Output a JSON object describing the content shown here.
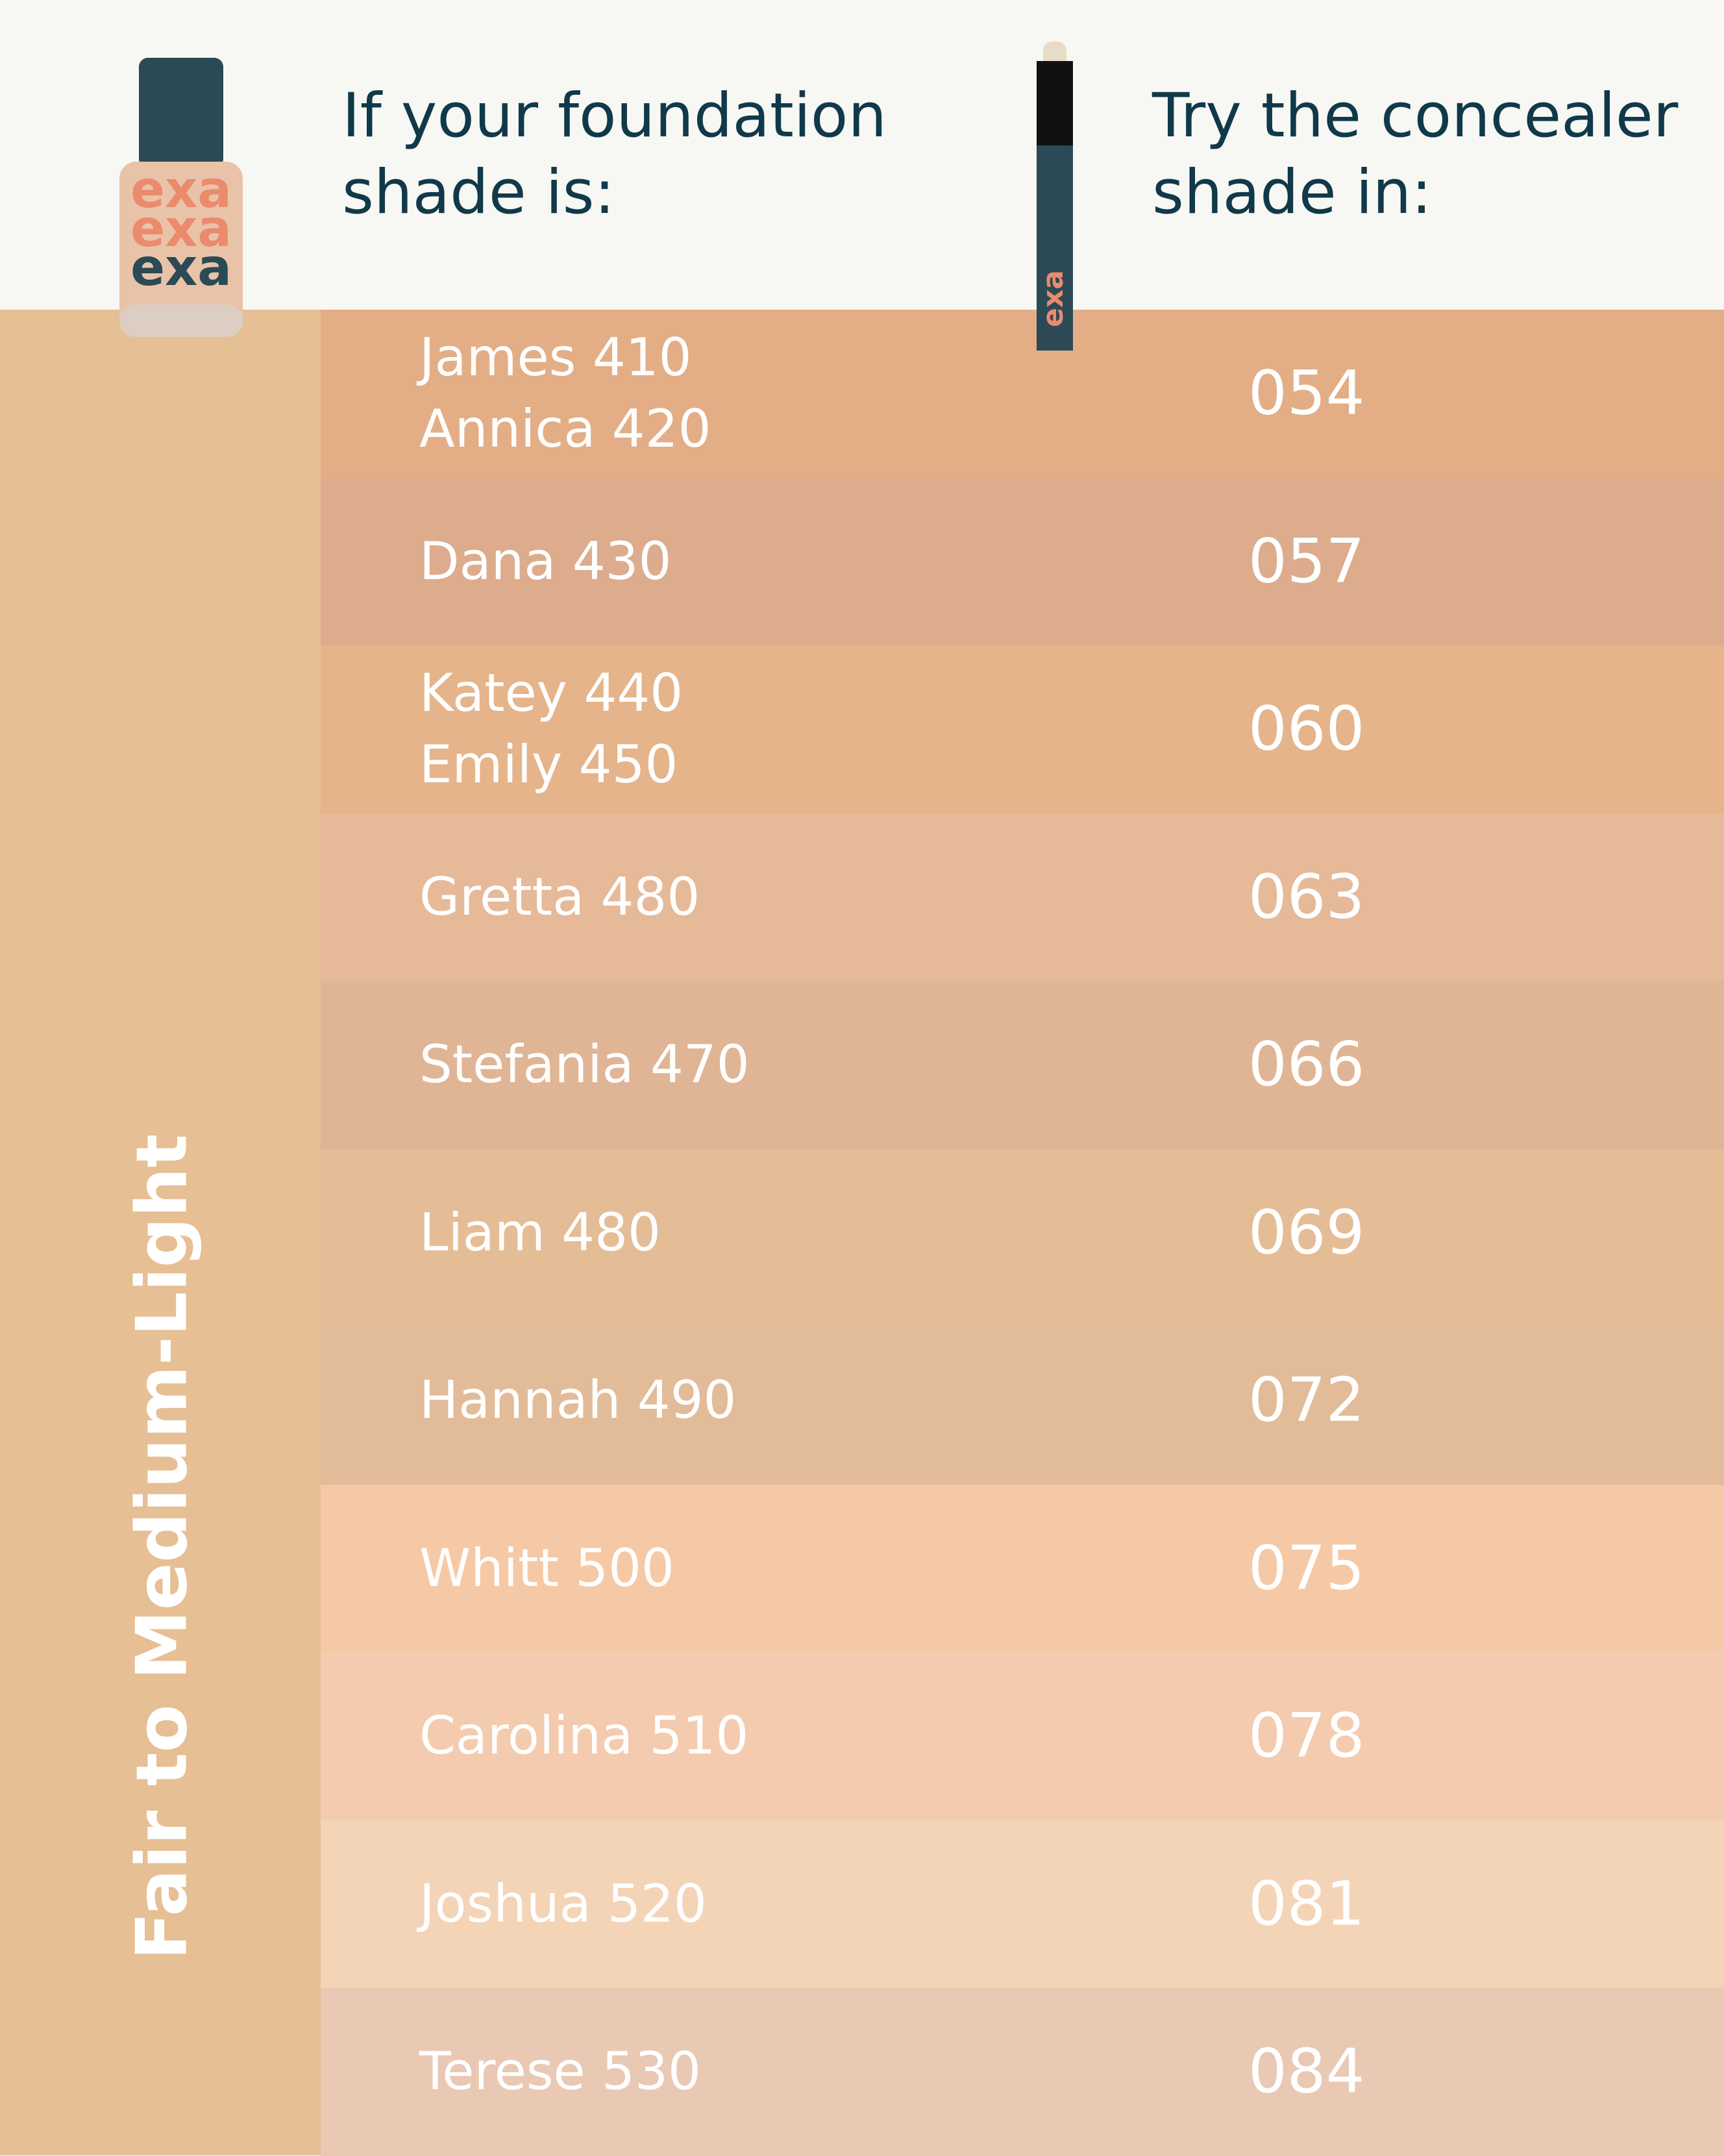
{
  "header": {
    "foundation_heading": [
      "If your foundation",
      "shade is:"
    ],
    "concealer_heading": [
      "Try the concealer",
      "shade in:"
    ],
    "brand": "exa"
  },
  "sidebar": {
    "label": "Fair to Medium-Light"
  },
  "rows": [
    {
      "foundation": [
        "James 410",
        "Annica 420"
      ],
      "concealer": "054",
      "color": "#e3ae86"
    },
    {
      "foundation": [
        "Dana 430"
      ],
      "concealer": "057",
      "color": "#dcac8d"
    },
    {
      "foundation": [
        "Katey 440",
        "Emily 450"
      ],
      "concealer": "060",
      "color": "#e5b48a"
    },
    {
      "foundation": [
        "Gretta 480"
      ],
      "concealer": "063",
      "color": "#e6b998"
    },
    {
      "foundation": [
        "Stefania 470"
      ],
      "concealer": "066",
      "color": "#e0b595"
    },
    {
      "foundation": [
        "Liam 480"
      ],
      "concealer": "069",
      "color": "#e4bd96"
    },
    {
      "foundation": [
        "Hannah 490"
      ],
      "concealer": "072",
      "color": "#e2bb98"
    },
    {
      "foundation": [
        "Whitt 500"
      ],
      "concealer": "075",
      "color": "#f5c9a5"
    },
    {
      "foundation": [
        "Carolina 510"
      ],
      "concealer": "078",
      "color": "#f4cbaf"
    },
    {
      "foundation": [
        "Joshua 520"
      ],
      "concealer": "081",
      "color": "#f4d4b7"
    },
    {
      "foundation": [
        "Terese 530"
      ],
      "concealer": "084",
      "color": "#e9c9b4"
    }
  ]
}
